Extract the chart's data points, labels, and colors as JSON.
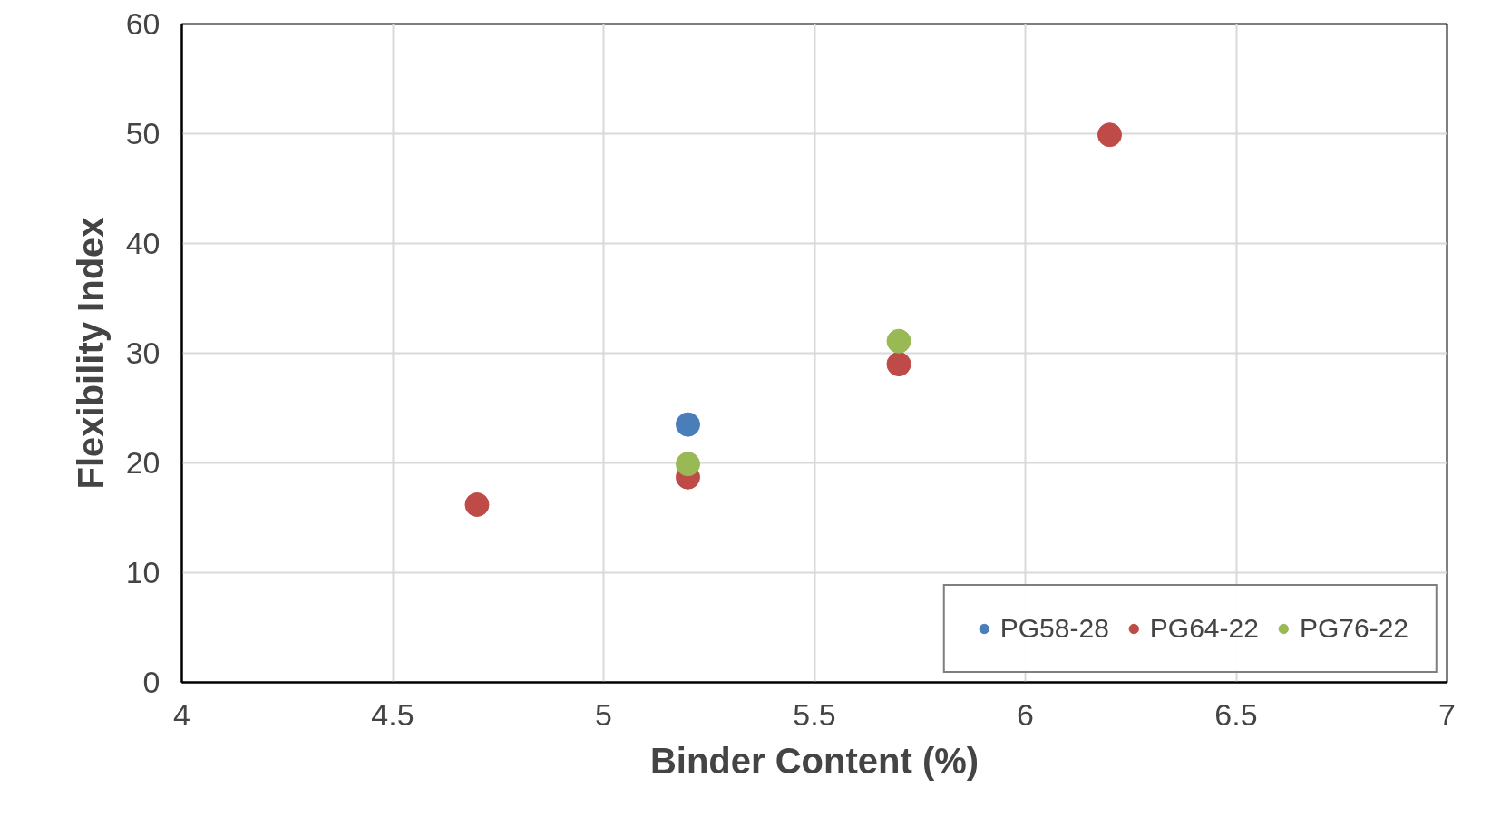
{
  "chart_data": {
    "type": "scatter",
    "xlabel": "Binder Content (%)",
    "ylabel": "Flexibility Index",
    "xlim": [
      4,
      7
    ],
    "xticks": [
      4,
      4.5,
      5,
      5.5,
      6,
      6.5,
      7
    ],
    "ylim": [
      0,
      60
    ],
    "yticks": [
      0,
      10,
      20,
      30,
      40,
      50,
      60
    ],
    "grid": true,
    "legend": "bottom right",
    "marker": "circle",
    "series": [
      {
        "name": "PG58-28",
        "color": "#4a7ebb",
        "x": [
          5.2
        ],
        "values": [
          23.5
        ]
      },
      {
        "name": "PG64-22",
        "color": "#be4b48",
        "x": [
          4.7,
          5.2,
          5.7,
          6.2
        ],
        "values": [
          16.2,
          18.7,
          29.0,
          49.9
        ]
      },
      {
        "name": "PG76-22",
        "color": "#98b954",
        "x": [
          5.2,
          5.7
        ],
        "values": [
          19.9,
          31.1
        ]
      }
    ]
  }
}
